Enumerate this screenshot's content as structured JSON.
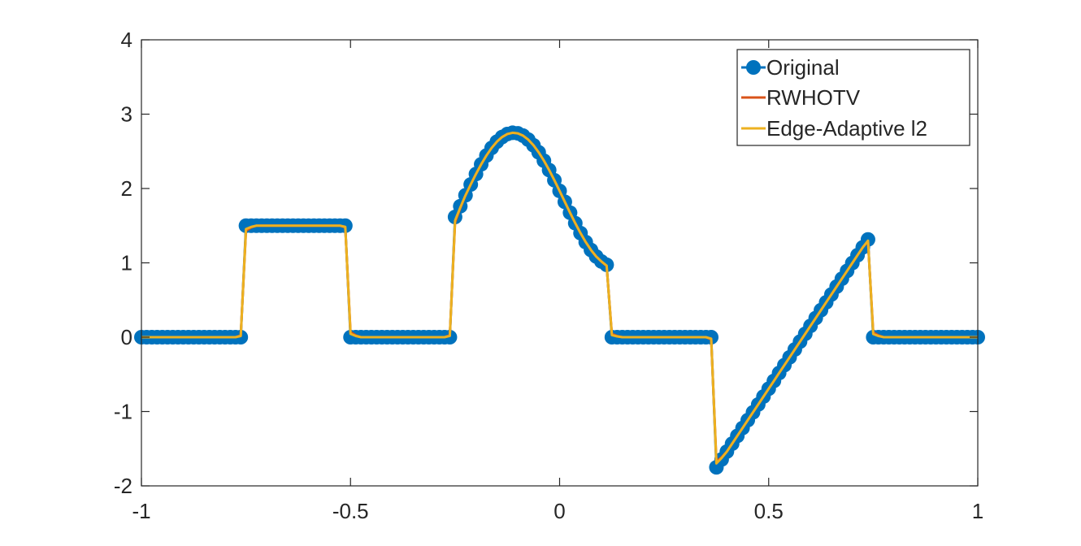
{
  "chart_data": {
    "type": "line",
    "title": "",
    "xlabel": "",
    "ylabel": "",
    "xlim": [
      -1,
      1
    ],
    "ylim": [
      -2,
      4
    ],
    "xticks": [
      -1,
      -0.5,
      0,
      0.5,
      1
    ],
    "xtick_labels": [
      "-1",
      "-0.5",
      "0",
      "0.5",
      "1"
    ],
    "yticks": [
      -2,
      -1,
      0,
      1,
      2,
      3,
      4
    ],
    "ytick_labels": [
      "-2",
      "-1",
      "0",
      "1",
      "2",
      "3",
      "4"
    ],
    "grid": false,
    "box": true,
    "legend_position": "top-right",
    "signal": {
      "sample_step": 0.0125,
      "segments": [
        {
          "from": -1.0,
          "to": -0.75,
          "kind": "constant",
          "value": 0
        },
        {
          "from": -0.75,
          "to": -0.5,
          "kind": "constant",
          "value": 1.5
        },
        {
          "from": -0.5,
          "to": -0.25,
          "kind": "constant",
          "value": 0
        },
        {
          "from": -0.25,
          "to": 0.125,
          "kind": "sinusoid",
          "a": 1.85,
          "b": 0.9,
          "c": 0.48,
          "d": 0.23
        },
        {
          "from": 0.125,
          "to": 0.375,
          "kind": "constant",
          "value": 0
        },
        {
          "from": 0.375,
          "to": 0.75,
          "kind": "linear",
          "start": -1.75,
          "end": 1.42
        },
        {
          "from": 0.75,
          "to": 1.0,
          "kind": "constant",
          "value": 0
        }
      ]
    },
    "series": [
      {
        "name": "Original",
        "color": "#0072BD",
        "style": "line-markers"
      },
      {
        "name": "RWHOTV",
        "color": "#D95319",
        "style": "line"
      },
      {
        "name": "Edge-Adaptive l2",
        "color": "#EDB120",
        "style": "line"
      }
    ]
  }
}
